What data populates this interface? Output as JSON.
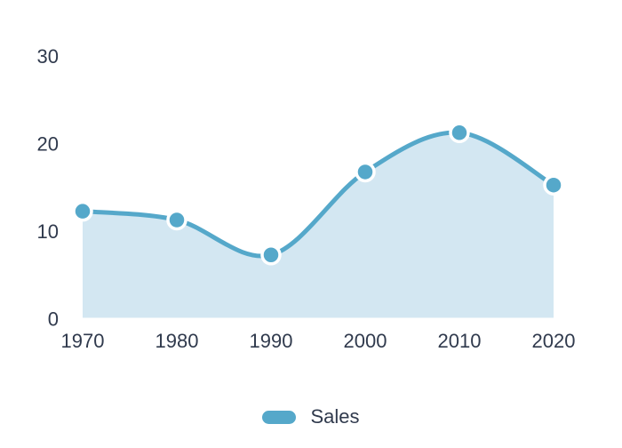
{
  "chart_data": {
    "type": "area",
    "title": "",
    "x_labels": [
      "1970",
      "1980",
      "1990",
      "2000",
      "2010",
      "2020"
    ],
    "series": [
      {
        "name": "Sales",
        "values": [
          12,
          11,
          7,
          16.5,
          21,
          15
        ]
      }
    ],
    "y_ticks": [
      0,
      10,
      20,
      30
    ],
    "ylim": [
      0,
      30
    ],
    "grid": false,
    "legend": {
      "position": "bottom",
      "items": [
        {
          "label": "Sales"
        }
      ]
    },
    "colors": {
      "line": "#55a8ca",
      "marker": "#55a8ca",
      "marker_border": "#ffffff",
      "fill": "#d3e7f2",
      "text": "#303a4d",
      "background": "#ffffff"
    }
  }
}
